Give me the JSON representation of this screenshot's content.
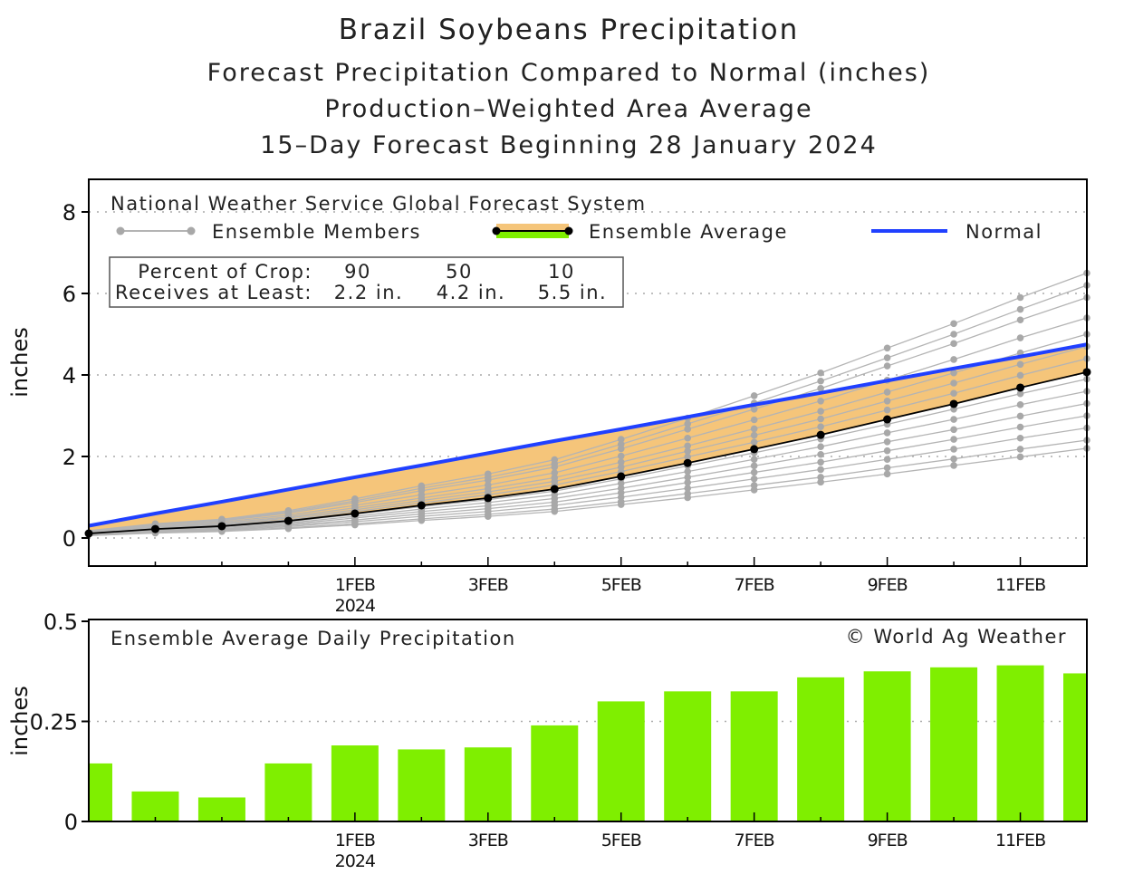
{
  "titles": {
    "title": "Brazil Soybeans Precipitation",
    "line2": "Forecast Precipitation Compared to Normal (inches)",
    "line3": "Production–Weighted Area Average",
    "line4": "15–Day Forecast Beginning 28 January 2024"
  },
  "chart_data": [
    {
      "type": "line",
      "source_label": "National Weather Service Global Forecast System",
      "ylabel": "inches",
      "ylim": [
        0,
        8.5
      ],
      "yticks": [
        0,
        2,
        4,
        6,
        8
      ],
      "grid": "horizontal dotted",
      "x": [
        "28JAN",
        "29JAN",
        "30JAN",
        "31JAN",
        "1FEB",
        "2FEB",
        "3FEB",
        "4FEB",
        "5FEB",
        "6FEB",
        "7FEB",
        "8FEB",
        "9FEB",
        "10FEB",
        "11FEB",
        "12FEB"
      ],
      "xtick_labels": [
        "1FEB",
        "3FEB",
        "5FEB",
        "7FEB",
        "9FEB",
        "11FEB"
      ],
      "xtick_year": "2024",
      "legend": {
        "members": "Ensemble Members",
        "average": "Ensemble Average",
        "normal": "Normal",
        "placement": "top"
      },
      "crop_table": {
        "row1_label": "Percent of Crop:",
        "row2_label": "Receives at Least:",
        "percents": [
          "90",
          "50",
          "10"
        ],
        "amounts": [
          "2.2 in.",
          "4.2 in.",
          "5.5 in."
        ]
      },
      "colors": {
        "members": "#b4b4b4",
        "average": "#000000",
        "normal": "#2040ff",
        "fill": "#f5c57a"
      },
      "series": [
        {
          "name": "Ensemble Average",
          "values": [
            0.11,
            0.22,
            0.29,
            0.42,
            0.6,
            0.8,
            0.98,
            1.2,
            1.51,
            1.84,
            2.18,
            2.53,
            2.91,
            3.29,
            3.69,
            4.07
          ]
        },
        {
          "name": "Normal",
          "values": [
            0.3,
            0.6,
            0.89,
            1.19,
            1.49,
            1.78,
            2.08,
            2.38,
            2.67,
            2.97,
            3.27,
            3.56,
            3.86,
            4.16,
            4.45,
            4.75
          ]
        }
      ],
      "members": [
        [
          0.18,
          0.35,
          0.46,
          0.67,
          0.96,
          1.28,
          1.57,
          1.92,
          2.42,
          2.94,
          3.49,
          4.05,
          4.66,
          5.26,
          5.9,
          6.5
        ],
        [
          0.17,
          0.33,
          0.44,
          0.64,
          0.91,
          1.22,
          1.49,
          1.82,
          2.3,
          2.8,
          3.31,
          3.85,
          4.42,
          5.0,
          5.61,
          6.2
        ],
        [
          0.16,
          0.32,
          0.42,
          0.61,
          0.87,
          1.16,
          1.42,
          1.74,
          2.19,
          2.67,
          3.16,
          3.67,
          4.22,
          4.77,
          5.35,
          5.9
        ],
        [
          0.15,
          0.29,
          0.39,
          0.56,
          0.8,
          1.06,
          1.3,
          1.6,
          2.01,
          2.45,
          2.9,
          3.36,
          3.87,
          4.38,
          4.91,
          5.4
        ],
        [
          0.14,
          0.27,
          0.36,
          0.52,
          0.74,
          0.98,
          1.21,
          1.48,
          1.86,
          2.26,
          2.68,
          3.11,
          3.58,
          4.05,
          4.54,
          5.0
        ],
        [
          0.13,
          0.25,
          0.33,
          0.49,
          0.69,
          0.92,
          1.13,
          1.39,
          1.74,
          2.13,
          2.52,
          2.92,
          3.36,
          3.8,
          4.26,
          4.7
        ],
        [
          0.12,
          0.24,
          0.31,
          0.45,
          0.65,
          0.86,
          1.06,
          1.3,
          1.63,
          1.99,
          2.35,
          2.73,
          3.14,
          3.55,
          3.99,
          4.4
        ],
        [
          0.11,
          0.21,
          0.28,
          0.4,
          0.58,
          0.77,
          0.94,
          1.15,
          1.45,
          1.77,
          2.09,
          2.43,
          2.79,
          3.16,
          3.54,
          3.9
        ],
        [
          0.1,
          0.19,
          0.26,
          0.37,
          0.53,
          0.71,
          0.87,
          1.06,
          1.34,
          1.63,
          1.93,
          2.24,
          2.58,
          2.91,
          3.27,
          3.6
        ],
        [
          0.09,
          0.18,
          0.23,
          0.34,
          0.49,
          0.65,
          0.79,
          0.97,
          1.22,
          1.49,
          1.77,
          2.05,
          2.36,
          2.66,
          2.99,
          3.3
        ],
        [
          0.08,
          0.16,
          0.21,
          0.31,
          0.44,
          0.59,
          0.72,
          0.88,
          1.11,
          1.36,
          1.61,
          1.86,
          2.14,
          2.42,
          2.72,
          3.0
        ],
        [
          0.07,
          0.15,
          0.19,
          0.28,
          0.4,
          0.53,
          0.65,
          0.8,
          1.0,
          1.22,
          1.45,
          1.68,
          1.93,
          2.18,
          2.45,
          2.7
        ],
        [
          0.06,
          0.13,
          0.17,
          0.25,
          0.35,
          0.47,
          0.58,
          0.71,
          0.89,
          1.09,
          1.29,
          1.49,
          1.72,
          1.94,
          2.18,
          2.4
        ],
        [
          0.06,
          0.12,
          0.16,
          0.23,
          0.32,
          0.43,
          0.53,
          0.65,
          0.82,
          0.99,
          1.18,
          1.37,
          1.57,
          1.78,
          1.99,
          2.2
        ]
      ]
    },
    {
      "type": "bar",
      "title": "Ensemble Average Daily Precipitation",
      "credit": "© World Ag Weather",
      "ylabel": "inches",
      "ylim": [
        0,
        0.5
      ],
      "yticks": [
        "0",
        "0.25",
        "0.5"
      ],
      "grid": "horizontal dotted",
      "bar_color": "#7fef00",
      "categories": [
        "28JAN",
        "29JAN",
        "30JAN",
        "31JAN",
        "1FEB",
        "2FEB",
        "3FEB",
        "4FEB",
        "5FEB",
        "6FEB",
        "7FEB",
        "8FEB",
        "9FEB",
        "10FEB",
        "11FEB",
        "12FEB"
      ],
      "xtick_labels": [
        "1FEB",
        "3FEB",
        "5FEB",
        "7FEB",
        "9FEB",
        "11FEB"
      ],
      "xtick_year": "2024",
      "values": [
        0.145,
        0.075,
        0.06,
        0.145,
        0.19,
        0.18,
        0.185,
        0.24,
        0.3,
        0.325,
        0.325,
        0.36,
        0.375,
        0.385,
        0.39,
        0.37
      ]
    }
  ]
}
